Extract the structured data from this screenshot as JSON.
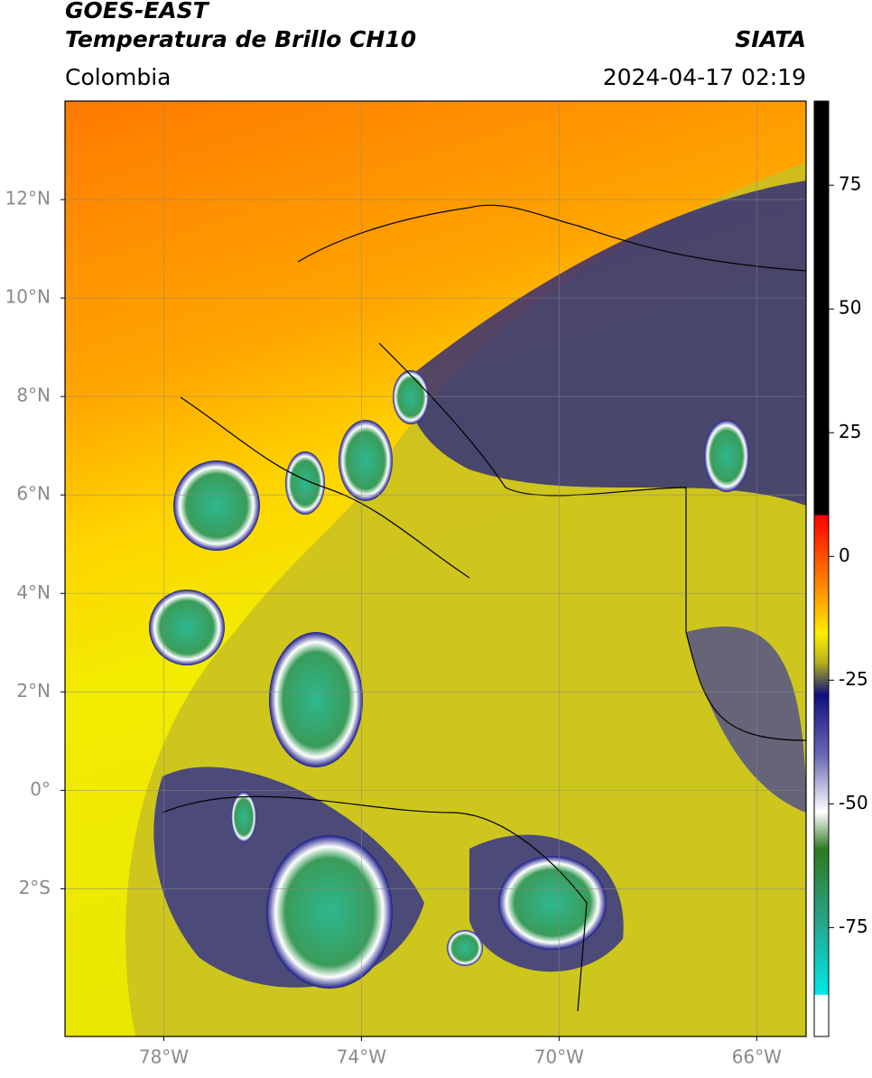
{
  "header": {
    "title": "GOES-EAST",
    "subtitle": "Temperatura de Brillo CH10",
    "source": "SIATA",
    "region": "Colombia",
    "datetime": "2024-04-17 02:19"
  },
  "map": {
    "xlim": [
      -80,
      -65
    ],
    "ylim": [
      -5,
      14
    ],
    "xticks": [
      {
        "value": -78,
        "label": "78°W"
      },
      {
        "value": -74,
        "label": "74°W"
      },
      {
        "value": -70,
        "label": "70°W"
      },
      {
        "value": -66,
        "label": "66°W"
      }
    ],
    "yticks": [
      {
        "value": 12,
        "label": "12°N"
      },
      {
        "value": 10,
        "label": "10°N"
      },
      {
        "value": 8,
        "label": "8°N"
      },
      {
        "value": 6,
        "label": "6°N"
      },
      {
        "value": 4,
        "label": "4°N"
      },
      {
        "value": 2,
        "label": "2°N"
      },
      {
        "value": 0,
        "label": "0°"
      },
      {
        "value": -2,
        "label": "2°S"
      }
    ],
    "grid": true
  },
  "colorbar": {
    "lim": [
      -97,
      92
    ],
    "ticks": [
      75,
      50,
      25,
      0,
      -25,
      -50,
      -75
    ]
  }
}
